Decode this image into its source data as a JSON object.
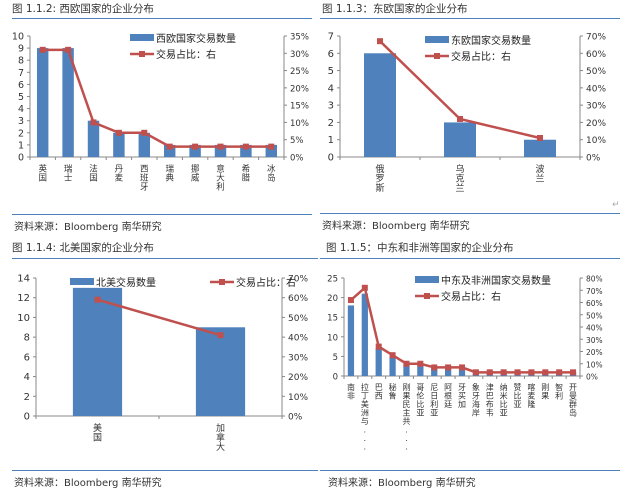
{
  "colors": {
    "bar": "#4f81bd",
    "line": "#c0504d",
    "rule": "#4f81bd"
  },
  "return_mark": "↵",
  "figures": [
    {
      "caption": "图 1.1.2: 西欧国家的企业分布",
      "source": "资料来源：Bloomberg  南华研究"
    },
    {
      "caption": "图 1.1.3：东欧国家的企业分布",
      "source": "资料来源：Bloomberg  南华研究"
    },
    {
      "caption": "图 1.1.4: 北美国家的企业分布",
      "source": "资料来源：Bloomberg  南华研究"
    },
    {
      "caption": "图 1.1.5：中东和非洲等国家的企业分布",
      "source": "资料来源：Bloomberg  南华研究"
    }
  ],
  "chart_data": [
    {
      "type": "bar+line",
      "title": "图 1.1.2: 西欧国家的企业分布",
      "categories": [
        "英国",
        "瑞士",
        "法国",
        "丹麦",
        "西班牙",
        "瑞典",
        "挪威",
        "意大利",
        "希腊",
        "冰岛"
      ],
      "series": [
        {
          "name": "西欧国家交易数量",
          "type": "bar",
          "axis": "left",
          "values": [
            9,
            9,
            3,
            2,
            2,
            1,
            1,
            1,
            1,
            1
          ]
        },
        {
          "name": "交易占比：右",
          "type": "line",
          "axis": "right",
          "values": [
            0.31,
            0.31,
            0.1,
            0.07,
            0.07,
            0.03,
            0.03,
            0.03,
            0.03,
            0.03
          ]
        }
      ],
      "ylim": [
        0,
        10
      ],
      "yticks": [
        "0",
        "1",
        "2",
        "3",
        "4",
        "5",
        "6",
        "7",
        "8",
        "9",
        "10"
      ],
      "y2lim": [
        0,
        0.35
      ],
      "y2ticks": [
        "0%",
        "5%",
        "10%",
        "15%",
        "20%",
        "25%",
        "30%",
        "35%"
      ],
      "legend": "top-right"
    },
    {
      "type": "bar+line",
      "title": "图 1.1.3：东欧国家的企业分布",
      "categories": [
        "俄罗斯",
        "乌克兰",
        "波兰"
      ],
      "series": [
        {
          "name": "东欧国家交易数量",
          "type": "bar",
          "axis": "left",
          "values": [
            6,
            2,
            1
          ]
        },
        {
          "name": "交易占比：右",
          "type": "line",
          "axis": "right",
          "values": [
            0.67,
            0.22,
            0.11
          ]
        }
      ],
      "ylim": [
        0,
        7
      ],
      "yticks": [
        "0",
        "1",
        "2",
        "3",
        "4",
        "5",
        "6",
        "7"
      ],
      "y2lim": [
        0,
        0.7
      ],
      "y2ticks": [
        "0%",
        "10%",
        "20%",
        "30%",
        "40%",
        "50%",
        "60%",
        "70%"
      ],
      "legend": "top-right"
    },
    {
      "type": "bar+line",
      "title": "图 1.1.4: 北美国家的企业分布",
      "categories": [
        "美国",
        "加拿大"
      ],
      "series": [
        {
          "name": "北美交易数量",
          "type": "bar",
          "axis": "left",
          "values": [
            13,
            9
          ]
        },
        {
          "name": "交易占比：右",
          "type": "line",
          "axis": "right",
          "values": [
            0.59,
            0.41
          ]
        }
      ],
      "ylim": [
        0,
        14
      ],
      "yticks": [
        "0",
        "2",
        "4",
        "6",
        "8",
        "10",
        "12",
        "14"
      ],
      "y2lim": [
        0,
        0.7
      ],
      "y2ticks": [
        "0%",
        "10%",
        "20%",
        "30%",
        "40%",
        "50%",
        "60%",
        "70%"
      ],
      "legend": "top"
    },
    {
      "type": "bar+line",
      "title": "图 1.1.5：中东和非洲等国家的企业分布",
      "categories": [
        "南非",
        "拉丁美洲与...",
        "巴西",
        "秘鲁",
        "刚果民主共...",
        "哥伦比亚",
        "尼日利亚",
        "阿根廷",
        "牙买加",
        "象牙海岸",
        "津巴布韦",
        "纳米比亚",
        "赞比亚",
        "喀麦隆",
        "刚果",
        "智利",
        "开曼群岛"
      ],
      "series": [
        {
          "name": "中东及非洲国家交易数量",
          "type": "bar",
          "axis": "left",
          "values": [
            18,
            21,
            7,
            5,
            3,
            3,
            2,
            2,
            2,
            1,
            1,
            1,
            1,
            1,
            1,
            1,
            1
          ]
        },
        {
          "name": "交易占比：右",
          "type": "line",
          "axis": "right",
          "values": [
            0.62,
            0.72,
            0.24,
            0.17,
            0.1,
            0.1,
            0.07,
            0.07,
            0.07,
            0.03,
            0.03,
            0.03,
            0.03,
            0.03,
            0.03,
            0.03,
            0.03
          ]
        }
      ],
      "ylim": [
        0,
        25
      ],
      "yticks": [
        "0",
        "5",
        "10",
        "15",
        "20",
        "25"
      ],
      "y2lim": [
        0,
        0.8
      ],
      "y2ticks": [
        "0%",
        "10%",
        "20%",
        "30%",
        "40%",
        "50%",
        "60%",
        "70%",
        "80%"
      ],
      "legend": "top-right"
    }
  ]
}
